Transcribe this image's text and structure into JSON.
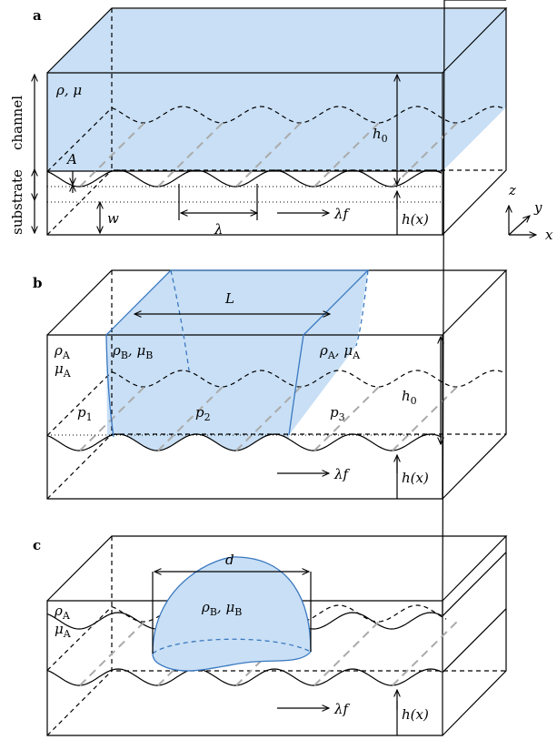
{
  "panel_a": {
    "label": "a",
    "fluid": "ρ, μ",
    "channel": "channel",
    "substrate": "substrate",
    "amplitude": "A",
    "depth": "w",
    "wavelength": "λ",
    "velocity": "λf",
    "height": "h(x)",
    "channel_height": [
      "h",
      "0"
    ],
    "axes": {
      "z": "z",
      "y": "y",
      "x": "x"
    }
  },
  "panel_b": {
    "label": "b",
    "length": "L",
    "rho_left": [
      "ρ",
      "A"
    ],
    "mu_left": [
      "μ",
      "A"
    ],
    "fluid_b": [
      "ρ",
      "B",
      ", μ",
      "B"
    ],
    "fluid_a_right": [
      "ρ",
      "A",
      ", μ",
      "A"
    ],
    "channel_height": [
      "h",
      "0"
    ],
    "p1": [
      "p",
      "1"
    ],
    "p2": [
      "p",
      "2"
    ],
    "p3": [
      "p",
      "3"
    ],
    "velocity": "λf",
    "height": "h(x)"
  },
  "panel_c": {
    "label": "c",
    "diameter": "d",
    "rho_left": [
      "ρ",
      "A"
    ],
    "mu_left": [
      "μ",
      "A"
    ],
    "fluid_b": [
      "ρ",
      "B",
      ", μ",
      "B"
    ],
    "velocity": "λf",
    "height": "h(x)"
  }
}
